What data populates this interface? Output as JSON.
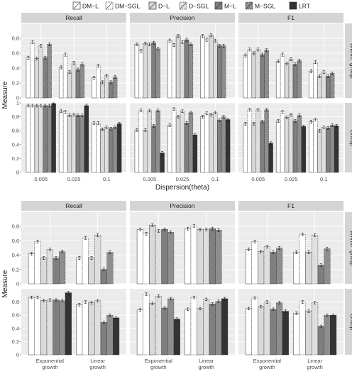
{
  "legend": [
    {
      "name": "DM−L",
      "fill": "#ffffff",
      "dash": false
    },
    {
      "name": "DM−SGL",
      "fill": "#ffffff",
      "dash": true
    },
    {
      "name": "D−L",
      "fill": "#d9d9d9",
      "dash": false
    },
    {
      "name": "D−SGL",
      "fill": "#d9d9d9",
      "dash": true
    },
    {
      "name": "M−L",
      "fill": "#7f7f7f",
      "dash": false
    },
    {
      "name": "M−SGL",
      "fill": "#7f7f7f",
      "dash": true
    },
    {
      "name": "LRT",
      "fill": "#333333",
      "dash": false
    }
  ],
  "colors": {
    "panel_bg": "#ebebeb",
    "strip_bg": "#d4d4d4",
    "grid": "#ffffff",
    "bar_stroke": "#333333"
  },
  "chart_data": [
    {
      "type": "bar",
      "facets": [
        "Recall",
        "Precision",
        "F1"
      ],
      "rows": [
        "Within−group",
        "Group"
      ],
      "categories": [
        "0.005",
        "0.025",
        "0.1"
      ],
      "xlabel": "Dispersion(theta)",
      "ylabel": "Measure",
      "ylim": [
        0,
        1
      ],
      "row_ticks": [
        [
          0,
          0.2,
          0.4,
          0.6,
          0.8
        ],
        [
          0,
          0.2,
          0.4,
          0.6,
          0.8,
          1
        ]
      ],
      "values": [
        [
          [
            [
              0.54,
              0.75,
              0.53,
              0.7,
              0.54,
              0.72,
              null
            ],
            [
              0.41,
              0.58,
              0.35,
              0.47,
              0.38,
              0.45,
              null
            ],
            [
              0.27,
              0.43,
              0.21,
              0.3,
              0.21,
              0.28,
              null
            ]
          ],
          [
            [
              0.72,
              0.63,
              0.73,
              0.72,
              0.74,
              0.66,
              null
            ],
            [
              0.77,
              0.71,
              0.83,
              0.75,
              0.78,
              0.72,
              null
            ],
            [
              0.83,
              0.78,
              0.84,
              0.77,
              0.7,
              0.7,
              null
            ]
          ],
          [
            [
              0.57,
              0.65,
              0.6,
              0.65,
              0.58,
              0.64,
              null
            ],
            [
              0.49,
              0.58,
              0.46,
              0.52,
              0.45,
              0.5,
              null
            ],
            [
              0.36,
              0.48,
              0.29,
              0.35,
              0.29,
              0.33,
              null
            ]
          ]
        ],
        [
          [
            [
              0.96,
              0.96,
              0.96,
              0.96,
              0.96,
              0.96,
              0.99
            ],
            [
              0.88,
              0.87,
              0.82,
              0.83,
              0.82,
              0.82,
              0.96
            ],
            [
              0.71,
              0.71,
              0.62,
              0.65,
              0.63,
              0.65,
              0.7
            ]
          ],
          [
            [
              0.61,
              0.89,
              0.61,
              0.89,
              0.67,
              0.89,
              0.28
            ],
            [
              0.68,
              0.91,
              0.8,
              0.88,
              0.71,
              0.86,
              0.54
            ],
            [
              0.8,
              0.85,
              0.83,
              0.86,
              0.75,
              0.8,
              0.76
            ]
          ],
          [
            [
              0.7,
              0.9,
              0.7,
              0.9,
              0.73,
              0.9,
              0.42
            ],
            [
              0.74,
              0.87,
              0.79,
              0.83,
              0.74,
              0.82,
              0.66
            ],
            [
              0.73,
              0.76,
              0.6,
              0.65,
              0.64,
              0.68,
              0.67
            ]
          ]
        ]
      ]
    },
    {
      "type": "bar",
      "facets": [
        "Recall",
        "Precision",
        "F1"
      ],
      "rows": [
        "Within−group",
        "Group"
      ],
      "categories": [
        "Exponential\ngrowth",
        "Linear\ngrowth"
      ],
      "xlabel": "",
      "ylabel": "Measure",
      "ylim": [
        0,
        1
      ],
      "row_ticks": [
        [
          0,
          0.2,
          0.4,
          0.6,
          0.8
        ],
        [
          0,
          0.2,
          0.4,
          0.6,
          0.8
        ]
      ],
      "values": [
        [
          [
            [
              0.42,
              0.59,
              0.36,
              0.48,
              0.36,
              0.45,
              null
            ],
            [
              0.36,
              0.64,
              0.36,
              0.68,
              0.2,
              0.44,
              null
            ]
          ],
          [
            [
              0.76,
              0.7,
              0.82,
              0.74,
              0.76,
              0.72,
              null
            ],
            [
              0.77,
              0.81,
              0.76,
              0.76,
              0.77,
              0.75,
              null
            ]
          ],
          [
            [
              0.48,
              0.59,
              0.45,
              0.52,
              0.44,
              0.5,
              null
            ],
            [
              0.44,
              0.69,
              0.44,
              0.68,
              0.26,
              0.49,
              null
            ]
          ]
        ],
        [
          [
            [
              0.87,
              0.87,
              0.82,
              0.83,
              0.83,
              0.82,
              0.94
            ],
            [
              0.76,
              0.8,
              0.79,
              0.82,
              0.49,
              0.6,
              0.56
            ]
          ],
          [
            [
              0.68,
              0.92,
              0.78,
              0.89,
              0.71,
              0.85,
              0.54
            ],
            [
              0.69,
              0.87,
              0.7,
              0.84,
              0.77,
              0.81,
              0.85
            ]
          ],
          [
            [
              0.7,
              0.86,
              0.73,
              0.8,
              0.69,
              0.79,
              0.66
            ],
            [
              0.63,
              0.8,
              0.66,
              0.79,
              0.43,
              0.6,
              0.6
            ]
          ]
        ]
      ]
    }
  ]
}
